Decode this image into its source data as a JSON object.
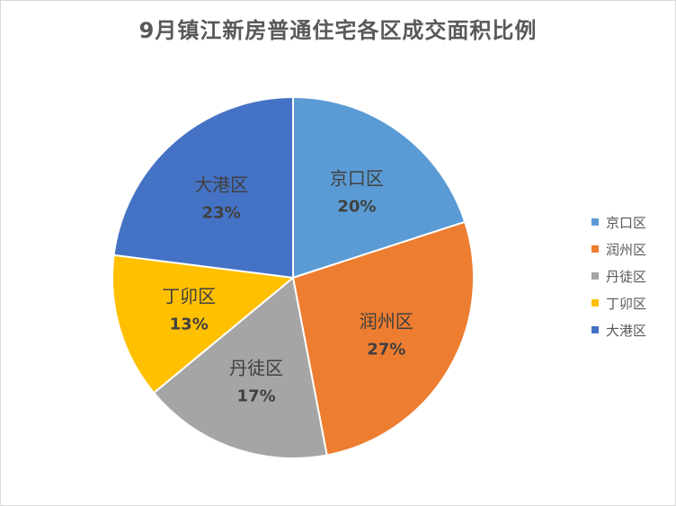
{
  "chart_data": {
    "type": "pie",
    "title": "9月镇江新房普通住宅各区成交面积比例",
    "slices": [
      {
        "label": "京口区",
        "value": 20,
        "display": "20%",
        "color": "#5B9BD5"
      },
      {
        "label": "润州区",
        "value": 27,
        "display": "27%",
        "color": "#ED7D31"
      },
      {
        "label": "丹徒区",
        "value": 17,
        "display": "17%",
        "color": "#A5A5A5"
      },
      {
        "label": "丁卯区",
        "value": 13,
        "display": "13%",
        "color": "#FFC000"
      },
      {
        "label": "大港区",
        "value": 23,
        "display": "23%",
        "color": "#4472C4"
      }
    ],
    "legend_position": "right",
    "start_angle_deg": 0,
    "direction": "clockwise"
  }
}
